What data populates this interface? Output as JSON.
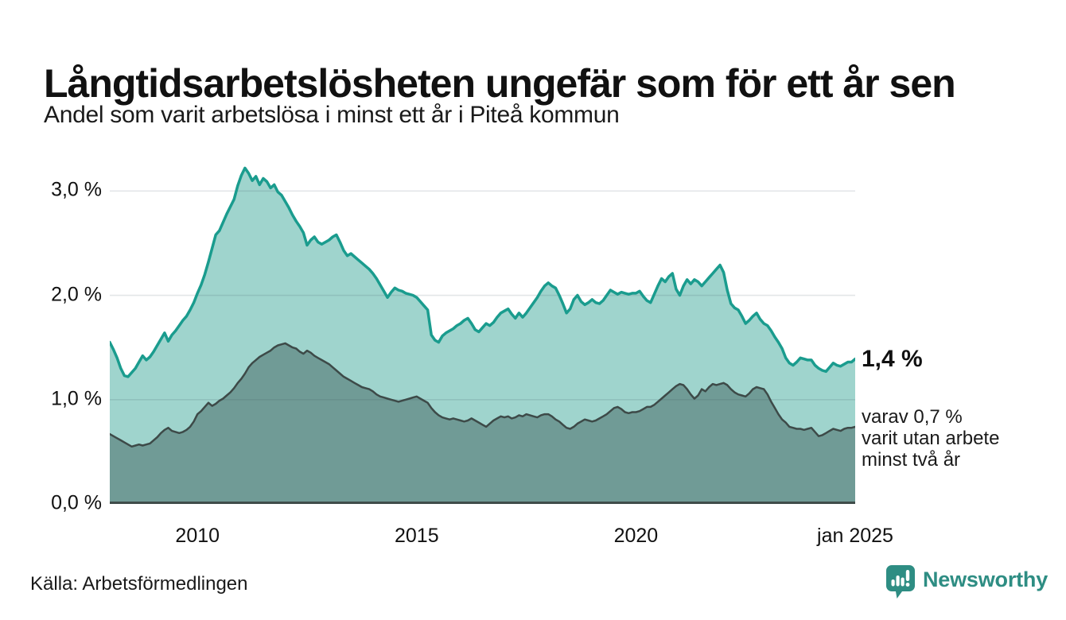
{
  "header": {
    "title": "Långtidsarbetslösheten ungefär som för ett år sen",
    "subtitle": "Andel som varit arbetslösa i minst ett år i Piteå kommun"
  },
  "footer": {
    "source": "Källa: Arbetsförmedlingen",
    "brand": "Newsworthy"
  },
  "colors": {
    "line_total": "#1a9c8e",
    "fill_total": "#9fd4cd",
    "line_two_years": "#3d4a48",
    "fill_two_years": "#709b96",
    "baseline": "#3f4c4a",
    "gridline": "rgba(60,75,90,0.14)",
    "brand_teal": "#2e8d83"
  },
  "chart_data": {
    "type": "area",
    "title": "Långtidsarbetslösheten ungefär som för ett år sen",
    "subtitle": "Andel som varit arbetslösa i minst ett år i Piteå kommun",
    "unit": "%",
    "x_start_year": 2008,
    "x_end_year": 2025,
    "x_step_months": 1,
    "ylim": [
      0,
      3.3
    ],
    "grid": "horizontal",
    "y_ticks": [
      {
        "label": "0,0 %",
        "value": 0
      },
      {
        "label": "1,0 %",
        "value": 1
      },
      {
        "label": "2,0 %",
        "value": 2
      },
      {
        "label": "3,0 %",
        "value": 3
      }
    ],
    "x_ticks": [
      {
        "label": "2010",
        "t": 2010
      },
      {
        "label": "2015",
        "t": 2015
      },
      {
        "label": "2020",
        "t": 2020
      },
      {
        "label": "jan 2025",
        "t": 2025
      }
    ],
    "series": [
      {
        "name": "Arbetslösa minst ett år",
        "color": "#1a9c8e",
        "fill": "#9fd4cd",
        "stroke_width": 3.5,
        "values": [
          1.55,
          1.48,
          1.4,
          1.3,
          1.23,
          1.22,
          1.26,
          1.3,
          1.36,
          1.42,
          1.38,
          1.41,
          1.46,
          1.52,
          1.58,
          1.64,
          1.56,
          1.62,
          1.66,
          1.71,
          1.76,
          1.8,
          1.86,
          1.93,
          2.02,
          2.1,
          2.2,
          2.32,
          2.45,
          2.58,
          2.62,
          2.7,
          2.78,
          2.85,
          2.92,
          3.05,
          3.15,
          3.22,
          3.17,
          3.1,
          3.14,
          3.06,
          3.12,
          3.09,
          3.03,
          3.06,
          2.99,
          2.96,
          2.9,
          2.84,
          2.77,
          2.71,
          2.66,
          2.6,
          2.48,
          2.53,
          2.56,
          2.51,
          2.49,
          2.51,
          2.53,
          2.56,
          2.58,
          2.51,
          2.43,
          2.38,
          2.4,
          2.37,
          2.34,
          2.31,
          2.28,
          2.25,
          2.21,
          2.16,
          2.1,
          2.04,
          1.98,
          2.03,
          2.07,
          2.05,
          2.04,
          2.02,
          2.01,
          2.0,
          1.98,
          1.94,
          1.9,
          1.86,
          1.62,
          1.57,
          1.55,
          1.61,
          1.64,
          1.66,
          1.68,
          1.71,
          1.73,
          1.76,
          1.78,
          1.73,
          1.67,
          1.65,
          1.69,
          1.73,
          1.71,
          1.74,
          1.79,
          1.83,
          1.85,
          1.87,
          1.82,
          1.78,
          1.83,
          1.79,
          1.83,
          1.88,
          1.93,
          1.98,
          2.04,
          2.09,
          2.12,
          2.09,
          2.07,
          2.0,
          1.92,
          1.83,
          1.87,
          1.96,
          2.0,
          1.94,
          1.91,
          1.93,
          1.96,
          1.93,
          1.92,
          1.95,
          2.0,
          2.05,
          2.03,
          2.01,
          2.03,
          2.02,
          2.01,
          2.02,
          2.02,
          2.04,
          1.99,
          1.95,
          1.93,
          2.01,
          2.09,
          2.16,
          2.13,
          2.18,
          2.21,
          2.06,
          2.0,
          2.09,
          2.15,
          2.11,
          2.15,
          2.13,
          2.09,
          2.13,
          2.17,
          2.21,
          2.25,
          2.29,
          2.22,
          2.05,
          1.92,
          1.88,
          1.86,
          1.8,
          1.73,
          1.76,
          1.8,
          1.83,
          1.77,
          1.73,
          1.71,
          1.66,
          1.6,
          1.55,
          1.49,
          1.4,
          1.35,
          1.33,
          1.36,
          1.4,
          1.39,
          1.38,
          1.38,
          1.33,
          1.3,
          1.28,
          1.27,
          1.31,
          1.35,
          1.33,
          1.32,
          1.34,
          1.36,
          1.36,
          1.39
        ]
      },
      {
        "name": "varav utan arbete minst två år",
        "color": "#3d4a48",
        "fill": "#709b96",
        "stroke_width": 2.5,
        "values": [
          0.67,
          0.65,
          0.63,
          0.61,
          0.59,
          0.57,
          0.55,
          0.56,
          0.57,
          0.56,
          0.57,
          0.58,
          0.61,
          0.64,
          0.68,
          0.71,
          0.73,
          0.7,
          0.69,
          0.68,
          0.69,
          0.71,
          0.74,
          0.79,
          0.86,
          0.89,
          0.93,
          0.97,
          0.94,
          0.96,
          0.99,
          1.01,
          1.04,
          1.07,
          1.11,
          1.16,
          1.2,
          1.25,
          1.31,
          1.35,
          1.38,
          1.41,
          1.43,
          1.45,
          1.47,
          1.5,
          1.52,
          1.53,
          1.54,
          1.52,
          1.5,
          1.49,
          1.46,
          1.44,
          1.47,
          1.45,
          1.42,
          1.4,
          1.38,
          1.36,
          1.34,
          1.31,
          1.28,
          1.25,
          1.22,
          1.2,
          1.18,
          1.16,
          1.14,
          1.12,
          1.11,
          1.1,
          1.08,
          1.05,
          1.03,
          1.02,
          1.01,
          1.0,
          0.99,
          0.98,
          0.99,
          1.0,
          1.01,
          1.02,
          1.03,
          1.01,
          0.99,
          0.97,
          0.92,
          0.88,
          0.85,
          0.83,
          0.82,
          0.81,
          0.82,
          0.81,
          0.8,
          0.79,
          0.8,
          0.82,
          0.8,
          0.78,
          0.76,
          0.74,
          0.77,
          0.8,
          0.82,
          0.84,
          0.83,
          0.84,
          0.82,
          0.83,
          0.85,
          0.84,
          0.86,
          0.85,
          0.84,
          0.83,
          0.85,
          0.86,
          0.86,
          0.84,
          0.81,
          0.79,
          0.76,
          0.73,
          0.72,
          0.74,
          0.77,
          0.79,
          0.81,
          0.8,
          0.79,
          0.8,
          0.82,
          0.84,
          0.86,
          0.89,
          0.92,
          0.93,
          0.91,
          0.88,
          0.87,
          0.88,
          0.88,
          0.89,
          0.91,
          0.93,
          0.93,
          0.95,
          0.98,
          1.01,
          1.04,
          1.07,
          1.1,
          1.13,
          1.15,
          1.14,
          1.1,
          1.05,
          1.01,
          1.04,
          1.1,
          1.08,
          1.12,
          1.15,
          1.14,
          1.15,
          1.16,
          1.14,
          1.1,
          1.07,
          1.05,
          1.04,
          1.03,
          1.06,
          1.1,
          1.12,
          1.11,
          1.1,
          1.05,
          0.98,
          0.92,
          0.86,
          0.81,
          0.78,
          0.74,
          0.73,
          0.72,
          0.72,
          0.71,
          0.72,
          0.73,
          0.69,
          0.65,
          0.66,
          0.68,
          0.7,
          0.72,
          0.71,
          0.7,
          0.72,
          0.73,
          0.73,
          0.74
        ]
      }
    ],
    "annotations": {
      "end_label": "1,4 %",
      "sub_lines": [
        "varav 0,7 %",
        "varit utan arbete",
        "minst två år"
      ]
    }
  }
}
